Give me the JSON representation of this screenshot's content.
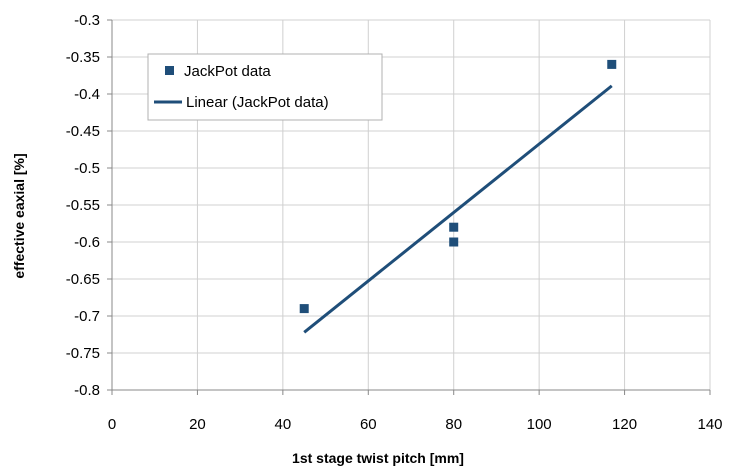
{
  "chart_data": {
    "type": "scatter",
    "title": "",
    "xlabel": "1st stage twist pitch [mm]",
    "ylabel": "effective eaxial [%]",
    "xlim": [
      0,
      140
    ],
    "ylim": [
      -0.8,
      -0.3
    ],
    "xticks": [
      0,
      20,
      40,
      60,
      80,
      100,
      120,
      140
    ],
    "yticks": [
      -0.3,
      -0.35,
      -0.4,
      -0.45,
      -0.5,
      -0.55,
      -0.6,
      -0.65,
      -0.7,
      -0.75,
      -0.8
    ],
    "xtick_labels": [
      "0",
      "20",
      "40",
      "60",
      "80",
      "100",
      "120",
      "140"
    ],
    "ytick_labels": [
      "-0.3",
      "-0.35",
      "-0.4",
      "-0.45",
      "-0.5",
      "-0.55",
      "-0.6",
      "-0.65",
      "-0.7",
      "-0.75",
      "-0.8"
    ],
    "grid": true,
    "legend_position": "top-left",
    "series": [
      {
        "name": "JackPot data",
        "kind": "scatter",
        "marker": "square",
        "color": "#1f4e79",
        "x": [
          45,
          80,
          80,
          117
        ],
        "y": [
          -0.69,
          -0.58,
          -0.6,
          -0.36
        ]
      },
      {
        "name": "Linear (JackPot data)",
        "kind": "line",
        "color": "#1f4e79",
        "x": [
          45,
          117
        ],
        "y": [
          -0.722,
          -0.389
        ]
      }
    ]
  }
}
